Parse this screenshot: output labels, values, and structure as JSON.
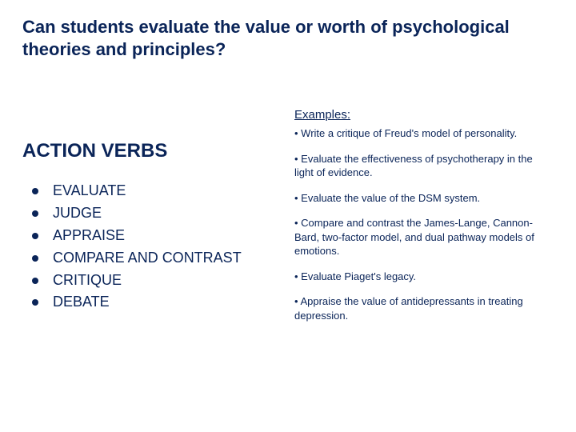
{
  "title": "Can students evaluate the value or worth of psychological theories and principles?",
  "left": {
    "heading": "ACTION VERBS",
    "verbs": [
      "EVALUATE",
      "JUDGE",
      "APPRAISE",
      "COMPARE AND CONTRAST",
      "CRITIQUE",
      "DEBATE"
    ]
  },
  "right": {
    "heading": "Examples:",
    "items": [
      "• Write a critique of Freud's model of personality.",
      "• Evaluate the effectiveness of psychotherapy in the light of evidence.",
      "• Evaluate the value of the DSM system.",
      "• Compare and contrast the James-Lange, Cannon-Bard, two-factor model, and dual pathway models of emotions.",
      "• Evaluate Piaget's legacy.",
      "• Appraise the value of antidepressants in treating depression."
    ]
  },
  "colors": {
    "text": "#0a2458",
    "background": "#ffffff"
  }
}
